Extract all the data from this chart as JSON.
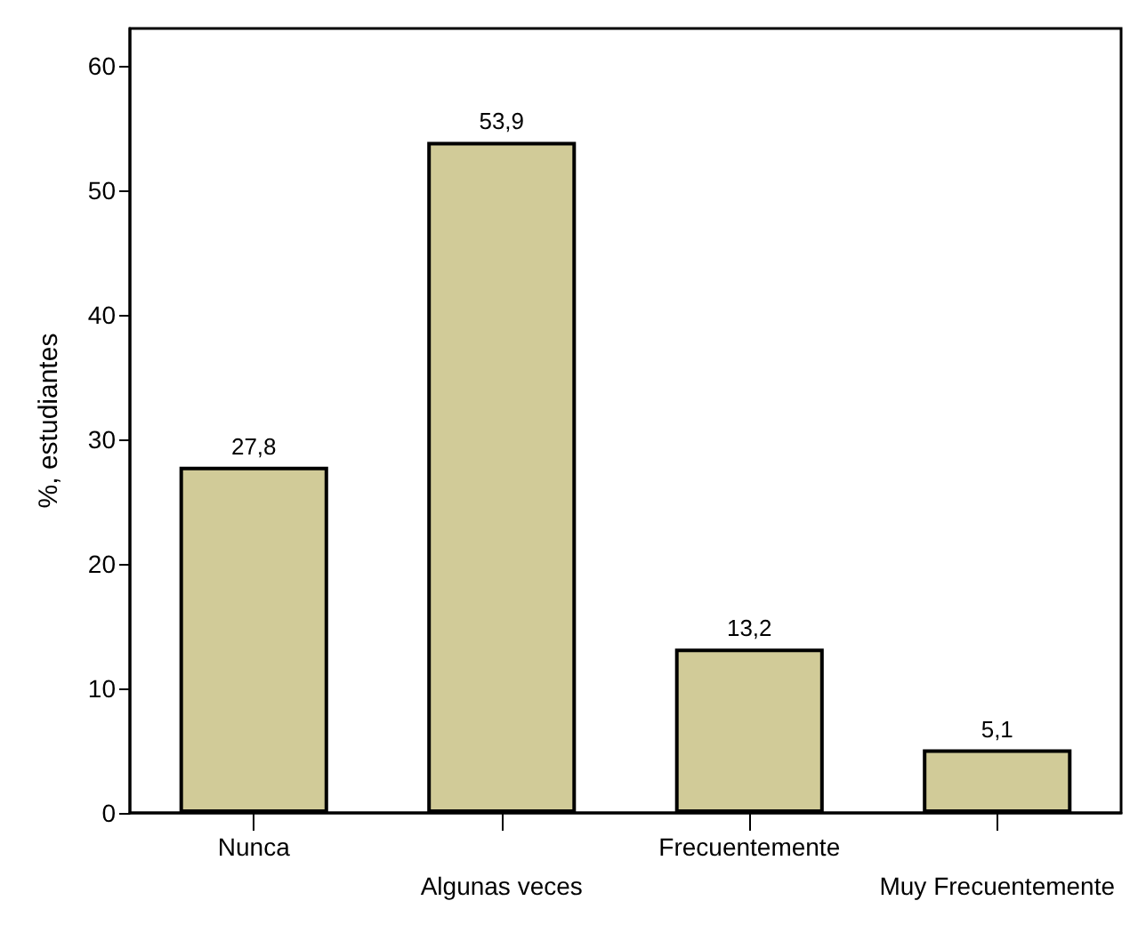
{
  "chart_data": {
    "type": "bar",
    "ylabel": "%, estudiantes",
    "categories": [
      "Nunca",
      "Algunas veces",
      "Frecuentemente",
      "Muy Frecuentemente"
    ],
    "values": [
      27.8,
      53.9,
      13.2,
      5.1
    ],
    "value_labels": [
      "27,8",
      "53,9",
      "13,2",
      "5,1"
    ],
    "color": "#d1cb98",
    "ylim": [
      0,
      63
    ],
    "yticks": [
      0,
      10,
      20,
      30,
      40,
      50,
      60
    ],
    "grid": false
  }
}
